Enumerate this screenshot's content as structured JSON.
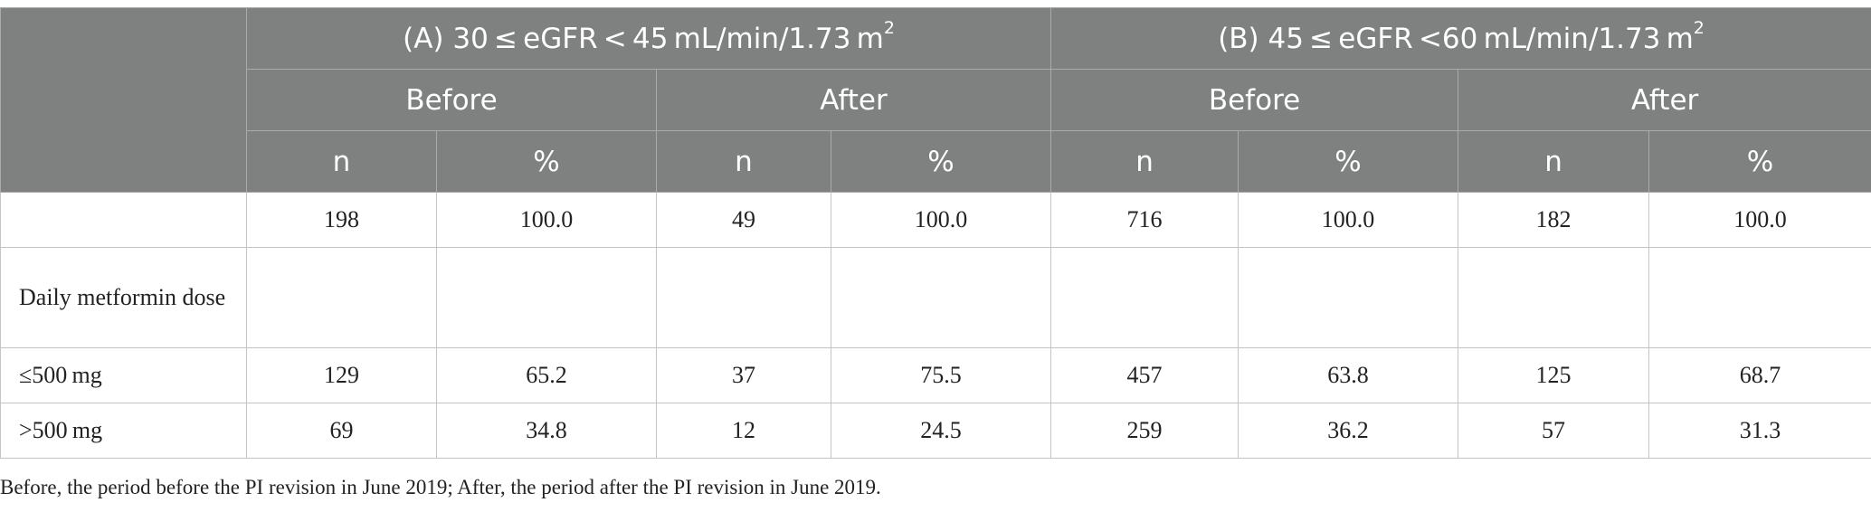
{
  "table": {
    "groups": [
      {
        "label": "(A) 30 ≤ eGFR < 45 mL/min/1.73 m",
        "sup": "2"
      },
      {
        "label": "(B) 45 ≤ eGFR <60 mL/min/1.73 m",
        "sup": "2"
      }
    ],
    "periods": [
      "Before",
      "After",
      "Before",
      "After"
    ],
    "subheaders": [
      "n",
      "%",
      "n",
      "%",
      "n",
      "%",
      "n",
      "%"
    ],
    "rows": [
      {
        "label": "",
        "cells": [
          "198",
          "100.0",
          "49",
          "100.0",
          "716",
          "100.0",
          "182",
          "100.0"
        ]
      },
      {
        "label": "Daily metformin dose",
        "cells": [
          "",
          "",
          "",
          "",
          "",
          "",
          "",
          ""
        ]
      },
      {
        "label": "≤500 mg",
        "cells": [
          "129",
          "65.2",
          "37",
          "75.5",
          "457",
          "63.8",
          "125",
          "68.7"
        ]
      },
      {
        "label": ">500 mg",
        "cells": [
          "69",
          "34.8",
          "12",
          "24.5",
          "259",
          "36.2",
          "57",
          "31.3"
        ]
      }
    ]
  },
  "footnote": "Before, the period before the PI revision in June 2019; After, the period after the PI revision in June 2019."
}
